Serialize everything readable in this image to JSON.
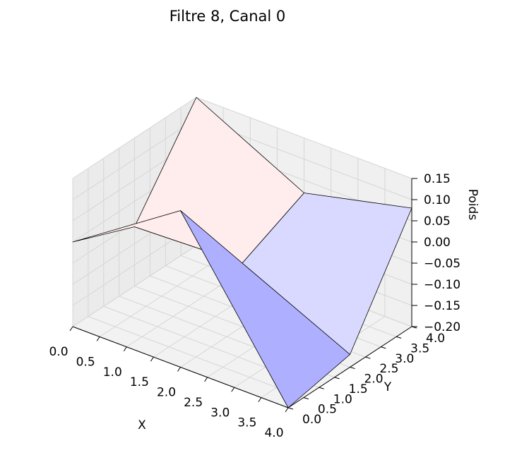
{
  "chart_data": {
    "type": "surface3d",
    "title": "Filtre 8, Canal 0",
    "xlabel": "X",
    "ylabel": "Y",
    "zlabel": "Poids",
    "colormap": "bwr",
    "x": [
      0,
      2,
      4
    ],
    "y": [
      0,
      2,
      4
    ],
    "z_rows_by_y": [
      [
        0.0,
        0.17,
        -0.2
      ],
      [
        -0.06,
        -0.05,
        -0.17
      ],
      [
        0.15,
        0.02,
        0.08
      ]
    ],
    "xlim": [
      0,
      4
    ],
    "ylim": [
      0,
      4
    ],
    "zlim": [
      -0.2,
      0.15
    ],
    "x_ticks": [
      "0.0",
      "0.5",
      "1.0",
      "1.5",
      "2.0",
      "2.5",
      "3.0",
      "3.5",
      "4.0"
    ],
    "y_ticks": [
      "0.0",
      "0.5",
      "1.0",
      "1.5",
      "2.0",
      "2.5",
      "3.0",
      "3.5",
      "4.0"
    ],
    "z_ticks": [
      "0.15",
      "0.10",
      "0.05",
      "0.00",
      "−0.05",
      "−0.10",
      "−0.15",
      "−0.20"
    ],
    "z_tick_values": [
      0.15,
      0.1,
      0.05,
      0.0,
      -0.05,
      -0.1,
      -0.15,
      -0.2
    ],
    "grid": true
  }
}
